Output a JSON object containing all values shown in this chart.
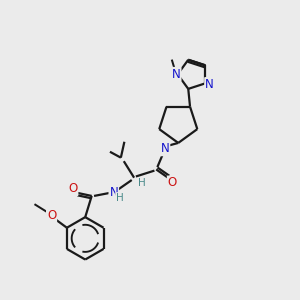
{
  "bg_color": "#ebebeb",
  "bond_color": "#1a1a1a",
  "N_color": "#1414cc",
  "O_color": "#cc1414",
  "H_color": "#4a8a8a",
  "font_size": 8.5,
  "line_width": 1.6,
  "fig_size": [
    3.0,
    3.0
  ],
  "dpi": 100,
  "xlim": [
    0,
    10
  ],
  "ylim": [
    0,
    10
  ]
}
